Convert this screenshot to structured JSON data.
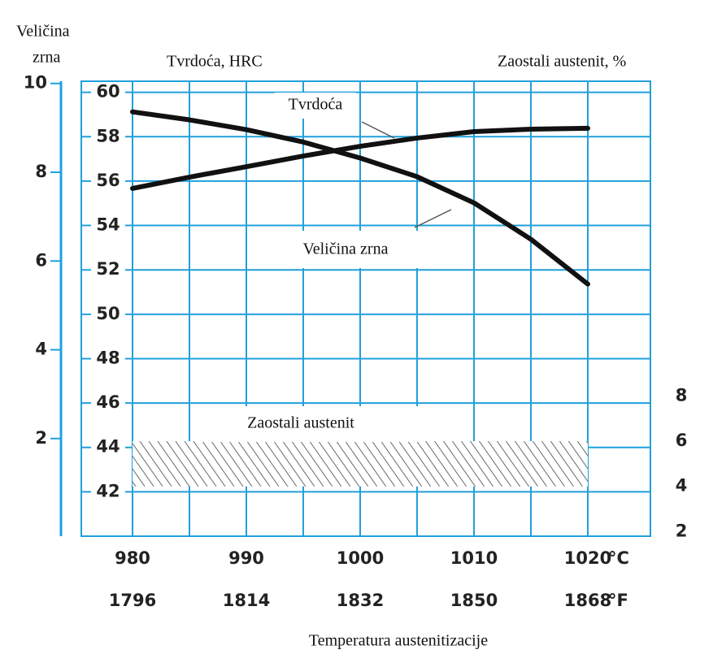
{
  "chart_data": {
    "type": "line",
    "y3label": [
      "Veličina",
      "zrna"
    ],
    "ylabel": "Tvrdoća, HRC",
    "y2label": "Zaostali austenit, %",
    "xlabel": "Temperatura austenitizacije",
    "xunit": "°C",
    "xunit_f": "°F",
    "xlim": [
      975.5,
      1025.5
    ],
    "xticks": [
      980,
      990,
      1000,
      1010,
      1020
    ],
    "xticks_f": [
      1796,
      1814,
      1832,
      1850,
      1868
    ],
    "xminor": [
      985,
      995,
      1005,
      1015
    ],
    "ylim": [
      40,
      60.5
    ],
    "yticks": [
      42,
      44,
      46,
      48,
      50,
      52,
      54,
      56,
      58,
      60
    ],
    "y2lim": [
      1.8,
      21.9
    ],
    "y2ticks": [
      2,
      4,
      6,
      8
    ],
    "y3lim": [
      -0.2,
      10.05
    ],
    "y3ticks": [
      2,
      4,
      6,
      8,
      10
    ],
    "grid": true,
    "grid_color": "#1fa0dc",
    "x": [
      980,
      985,
      990,
      995,
      1000,
      1005,
      1010,
      1015,
      1020
    ],
    "series": [
      {
        "name": "Tvrdoća",
        "color": "#111111",
        "axis": "y",
        "values": [
          55.67,
          56.18,
          56.65,
          57.13,
          57.57,
          57.94,
          58.23,
          58.34,
          58.38
        ]
      },
      {
        "name": "Veličina zrna",
        "color": "#111111",
        "axis": "y3",
        "values": [
          9.36,
          9.18,
          8.96,
          8.68,
          8.32,
          7.9,
          7.31,
          6.49,
          5.48
        ]
      }
    ],
    "band": {
      "name": "Zaostali austenit",
      "axis": "y2",
      "x": [
        980,
        1020
      ],
      "low": [
        4,
        4
      ],
      "high": [
        6,
        6
      ]
    }
  }
}
